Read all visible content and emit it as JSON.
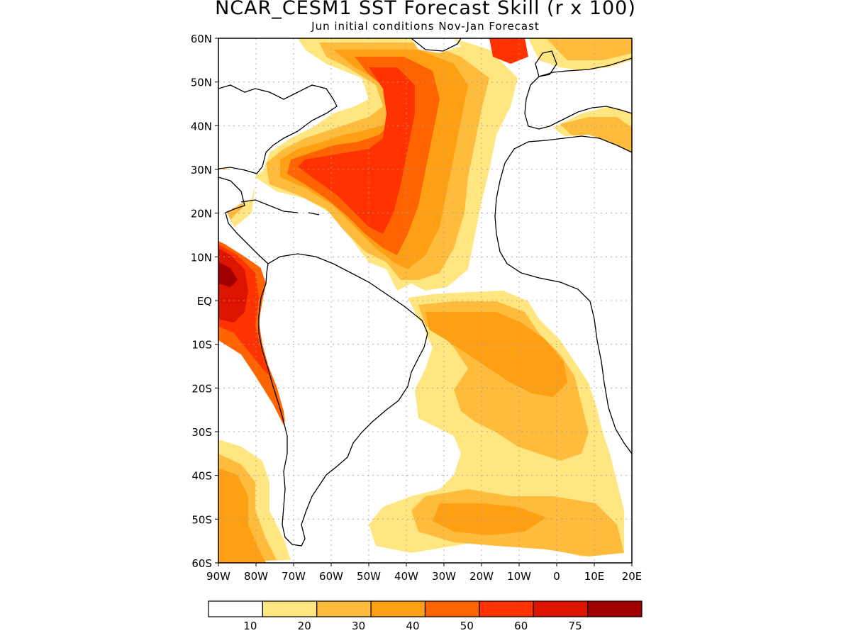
{
  "title": "NCAR_CESM1 SST Forecast Skill (r x 100)",
  "subtitle": "Jun initial conditions  Nov-Jan Forecast",
  "lat_labels": [
    "60N",
    "50N",
    "40N",
    "30N",
    "20N",
    "10N",
    "EQ",
    "10S",
    "20S",
    "30S",
    "40S",
    "50S",
    "60S"
  ],
  "lon_labels": [
    "90W",
    "80W",
    "70W",
    "60W",
    "50W",
    "40W",
    "30W",
    "20W",
    "10W",
    "0",
    "10E",
    "20E"
  ],
  "colorbar": {
    "colors": [
      "#ffffff",
      "#ffe680",
      "#ffbb3c",
      "#ffa014",
      "#ff6400",
      "#ff3200",
      "#dc1400",
      "#a00000"
    ],
    "labels": [
      "10",
      "20",
      "30",
      "40",
      "50",
      "60",
      "75"
    ]
  },
  "colors": {
    "land": "#ffffff",
    "coast": "#000000",
    "grid": "#a0a0a0"
  }
}
